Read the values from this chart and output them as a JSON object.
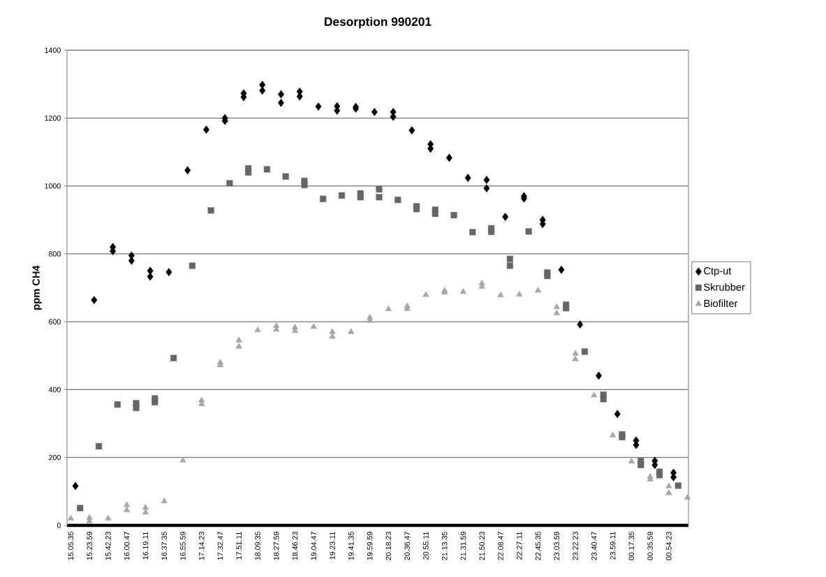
{
  "chart_data": {
    "type": "scatter",
    "title": "Desorption 990201",
    "ylabel": "ppm CH4",
    "categories": [
      "15.05.35",
      null,
      null,
      null,
      "15.23.59",
      null,
      null,
      null,
      "15.42.23",
      null,
      null,
      null,
      "16.00.47",
      null,
      null,
      null,
      "16.19.11",
      null,
      null,
      null,
      "16.37.35",
      null,
      null,
      null,
      "16.55.59",
      null,
      null,
      null,
      "17.14.23",
      null,
      null,
      null,
      "17.32.47",
      null,
      null,
      null,
      "17.51.11",
      null,
      null,
      null,
      "18.09.35",
      null,
      null,
      null,
      "18.27.59",
      null,
      null,
      null,
      "18.46.23",
      null,
      null,
      null,
      "19.04.47",
      null,
      null,
      null,
      "19.23.11",
      null,
      null,
      null,
      "19.41.35",
      null,
      null,
      null,
      "19.59.59",
      null,
      null,
      null,
      "20.18.23",
      null,
      null,
      null,
      "20.36.47",
      null,
      null,
      null,
      "20.55.11",
      null,
      null,
      null,
      "21.13.35",
      null,
      null,
      null,
      "21.31.59",
      null,
      null,
      null,
      "21.50.23",
      null,
      null,
      null,
      "22.08.47",
      null,
      null,
      null,
      "22.27.11",
      null,
      null,
      null,
      "22.45.35",
      null,
      null,
      null,
      "23.03.59",
      null,
      null,
      null,
      "23.22.23",
      null,
      null,
      null,
      "23.40.47",
      null,
      null,
      null,
      "23.59.11",
      null,
      null,
      null,
      "00.17.35",
      null,
      null,
      null,
      "00.35.59",
      null,
      null,
      null,
      "00.54.23",
      null,
      null,
      null,
      null
    ],
    "ylim": [
      0,
      1400
    ],
    "yticks": [
      0,
      200,
      400,
      600,
      800,
      1000,
      1200,
      1400
    ],
    "grid": "y",
    "legend": "right",
    "series": [
      {
        "name": "Ctp-ut",
        "color": "#000000",
        "marker": "diamond",
        "values": [
          null,
          116,
          null,
          null,
          null,
          664,
          null,
          null,
          null,
          820,
          null,
          null,
          null,
          795,
          null,
          null,
          null,
          750,
          null,
          null,
          null,
          746,
          null,
          null,
          null,
          1046,
          null,
          null,
          null,
          1166,
          null,
          null,
          null,
          1200,
          null,
          null,
          null,
          1273,
          null,
          null,
          null,
          1298,
          null,
          null,
          null,
          1270,
          null,
          null,
          null,
          1278,
          null,
          null,
          null,
          1234,
          null,
          null,
          null,
          1235,
          null,
          null,
          null,
          1233,
          null,
          null,
          null,
          1218,
          null,
          null,
          null,
          1218,
          null,
          null,
          null,
          1164,
          null,
          null,
          null,
          1123,
          null,
          null,
          null,
          1083,
          null,
          null,
          null,
          1024,
          null,
          null,
          null,
          1018,
          null,
          null,
          null,
          909,
          null,
          null,
          null,
          970,
          null,
          null,
          null,
          900,
          null,
          null,
          null,
          753,
          null,
          null,
          null,
          592,
          null,
          null,
          null,
          441,
          null,
          null,
          null,
          328,
          null,
          null,
          null,
          250,
          null,
          null,
          null,
          190,
          null,
          null,
          null,
          155,
          null,
          null,
          null
        ]
      },
      {
        "color": "#000000",
        "marker": "diamond",
        "values": [
          null,
          null,
          null,
          null,
          null,
          null,
          null,
          null,
          null,
          808,
          null,
          null,
          null,
          780,
          null,
          null,
          null,
          733,
          null,
          null,
          null,
          null,
          null,
          null,
          null,
          null,
          null,
          null,
          null,
          null,
          null,
          null,
          null,
          1192,
          null,
          null,
          null,
          1262,
          null,
          null,
          null,
          1281,
          null,
          null,
          null,
          1245,
          null,
          null,
          null,
          1264,
          null,
          null,
          null,
          null,
          null,
          null,
          null,
          1222,
          null,
          null,
          null,
          1228,
          null,
          null,
          null,
          null,
          null,
          null,
          null,
          1204,
          null,
          null,
          null,
          null,
          null,
          null,
          null,
          1110,
          null,
          null,
          null,
          null,
          null,
          null,
          null,
          null,
          null,
          null,
          null,
          993,
          null,
          null,
          null,
          null,
          null,
          null,
          null,
          963,
          null,
          null,
          null,
          888,
          null,
          null,
          null,
          null,
          null,
          null,
          null,
          null,
          null,
          null,
          null,
          null,
          null,
          null,
          null,
          null,
          null,
          null,
          null,
          237,
          null,
          null,
          null,
          178,
          null,
          null,
          null,
          142,
          null,
          null,
          null
        ]
      },
      {
        "name": "Skrubber",
        "color": "#666666",
        "marker": "square",
        "values": [
          null,
          null,
          51,
          null,
          null,
          null,
          233,
          null,
          null,
          null,
          356,
          null,
          null,
          null,
          360,
          null,
          null,
          null,
          374,
          null,
          null,
          null,
          493,
          null,
          null,
          null,
          765,
          null,
          null,
          null,
          928,
          null,
          null,
          null,
          1008,
          null,
          null,
          null,
          1052,
          null,
          null,
          null,
          1049,
          null,
          null,
          null,
          1028,
          null,
          null,
          null,
          1015,
          null,
          null,
          null,
          962,
          null,
          null,
          null,
          972,
          null,
          null,
          null,
          978,
          null,
          null,
          null,
          990,
          null,
          null,
          null,
          959,
          null,
          null,
          null,
          940,
          null,
          null,
          null,
          930,
          null,
          null,
          null,
          914,
          null,
          null,
          null,
          864,
          null,
          null,
          null,
          875,
          null,
          null,
          null,
          785,
          null,
          null,
          null,
          866,
          null,
          null,
          null,
          745,
          null,
          null,
          null,
          650,
          null,
          null,
          null,
          512,
          null,
          null,
          null,
          385,
          null,
          null,
          null,
          268,
          null,
          null,
          null,
          190,
          null,
          null,
          null,
          158,
          null,
          null,
          null,
          117,
          null,
          null
        ]
      },
      {
        "color": "#666666",
        "marker": "square",
        "values": [
          null,
          null,
          null,
          null,
          null,
          null,
          null,
          null,
          null,
          null,
          null,
          null,
          null,
          null,
          346,
          null,
          null,
          null,
          363,
          null,
          null,
          null,
          null,
          null,
          null,
          null,
          null,
          null,
          null,
          null,
          null,
          null,
          null,
          null,
          null,
          null,
          null,
          null,
          1040,
          null,
          null,
          null,
          null,
          null,
          null,
          null,
          null,
          null,
          null,
          null,
          1003,
          null,
          null,
          null,
          null,
          null,
          null,
          null,
          null,
          null,
          null,
          null,
          967,
          null,
          null,
          null,
          967,
          null,
          null,
          null,
          null,
          null,
          null,
          null,
          932,
          null,
          null,
          null,
          918,
          null,
          null,
          null,
          null,
          null,
          null,
          null,
          null,
          null,
          null,
          null,
          865,
          null,
          null,
          null,
          765,
          null,
          null,
          null,
          null,
          null,
          null,
          null,
          735,
          null,
          null,
          null,
          640,
          null,
          null,
          null,
          null,
          null,
          null,
          null,
          372,
          null,
          null,
          null,
          260,
          null,
          null,
          null,
          178,
          null,
          null,
          null,
          148,
          null,
          null,
          null,
          null,
          null,
          null
        ]
      },
      {
        "name": "Biofilter",
        "color": "#a6a6a6",
        "marker": "triangle",
        "values": [
          20,
          null,
          null,
          null,
          22,
          null,
          null,
          null,
          20,
          null,
          null,
          null,
          60,
          null,
          null,
          null,
          52,
          null,
          null,
          null,
          71,
          null,
          null,
          null,
          191,
          null,
          null,
          null,
          368,
          null,
          null,
          null,
          480,
          null,
          null,
          null,
          545,
          null,
          null,
          null,
          575,
          null,
          null,
          null,
          588,
          null,
          null,
          null,
          583,
          null,
          null,
          null,
          585,
          null,
          null,
          null,
          570,
          null,
          null,
          null,
          570,
          null,
          null,
          null,
          612,
          null,
          null,
          null,
          637,
          null,
          null,
          null,
          646,
          null,
          null,
          null,
          679,
          null,
          null,
          null,
          692,
          null,
          null,
          null,
          688,
          null,
          null,
          null,
          713,
          null,
          null,
          null,
          678,
          null,
          null,
          null,
          680,
          null,
          null,
          null,
          692,
          null,
          null,
          null,
          643,
          null,
          null,
          null,
          506,
          null,
          null,
          null,
          383,
          null,
          null,
          null,
          265,
          null,
          null,
          null,
          188,
          null,
          null,
          null,
          143,
          null,
          null,
          null,
          115,
          null,
          null,
          null,
          82
        ]
      },
      {
        "color": "#a6a6a6",
        "marker": "triangle",
        "values": [
          null,
          null,
          null,
          null,
          12,
          null,
          null,
          null,
          null,
          null,
          null,
          null,
          45,
          null,
          null,
          null,
          38,
          null,
          null,
          null,
          null,
          null,
          null,
          null,
          null,
          null,
          null,
          null,
          357,
          null,
          null,
          null,
          472,
          null,
          null,
          null,
          527,
          null,
          null,
          null,
          null,
          null,
          null,
          null,
          577,
          null,
          null,
          null,
          573,
          null,
          null,
          null,
          null,
          null,
          null,
          null,
          556,
          null,
          null,
          null,
          null,
          null,
          null,
          null,
          603,
          null,
          null,
          null,
          null,
          null,
          null,
          null,
          638,
          null,
          null,
          null,
          null,
          null,
          null,
          null,
          686,
          null,
          null,
          null,
          null,
          null,
          null,
          null,
          703,
          null,
          null,
          null,
          null,
          null,
          null,
          null,
          null,
          null,
          null,
          null,
          null,
          null,
          null,
          null,
          625,
          null,
          null,
          null,
          490,
          null,
          null,
          null,
          null,
          null,
          null,
          null,
          null,
          null,
          null,
          null,
          null,
          null,
          null,
          null,
          135,
          null,
          null,
          null,
          95,
          null,
          null,
          null,
          null
        ]
      }
    ]
  }
}
